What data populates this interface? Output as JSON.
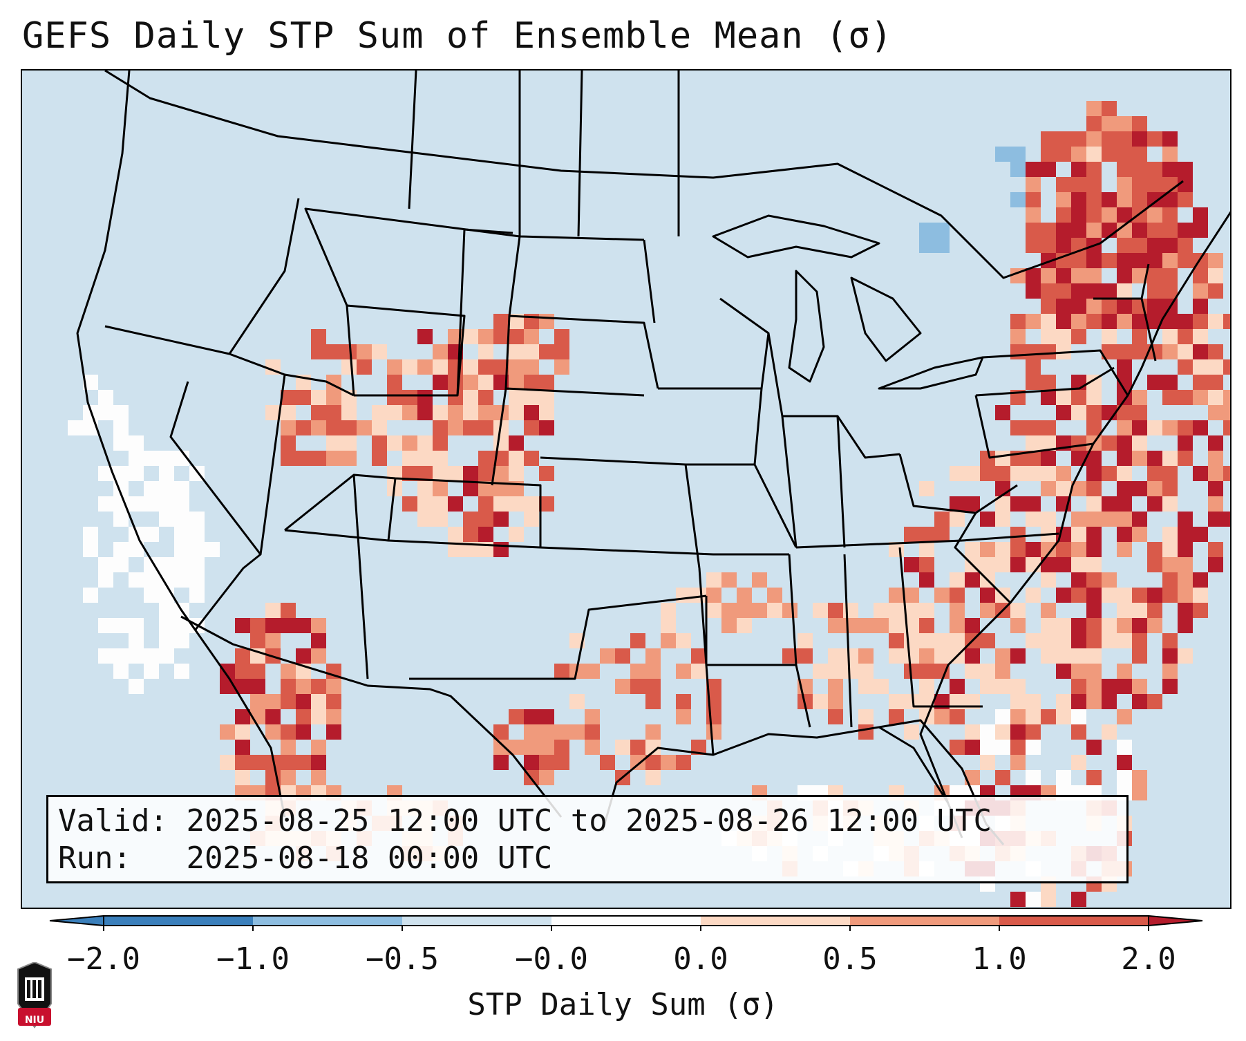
{
  "title": "GEFS Daily STP Sum of Ensemble Mean (σ)",
  "info": {
    "valid_label": "Valid:",
    "valid_value": "2025-08-25 12:00 UTC to 2025-08-26 12:00 UTC",
    "run_label": "Run:",
    "run_value": "2025-08-18 00:00 UTC"
  },
  "colorbar": {
    "label": "STP Daily Sum (σ)",
    "ticks": [
      "−2.0",
      "−1.0",
      "−0.5",
      "−0.0",
      "0.0",
      "0.5",
      "1.0",
      "2.0"
    ],
    "colors": [
      "#3a7fbb",
      "#8dbde0",
      "#cfe2ee",
      "#fdfdfd",
      "#fcd9c4",
      "#f09a7c",
      "#d95a4a",
      "#b51c2c"
    ]
  },
  "logo": {
    "text": "NIU",
    "color": "#c8102e"
  },
  "map_colors": {
    "background": "#cfe2ee",
    "neutral": "#fdfdfd",
    "light_red": "#fcd9c4",
    "mid_red": "#f09a7c",
    "red": "#d95a4a",
    "dark_red": "#b51c2c",
    "light_blue": "#8dbde0"
  }
}
